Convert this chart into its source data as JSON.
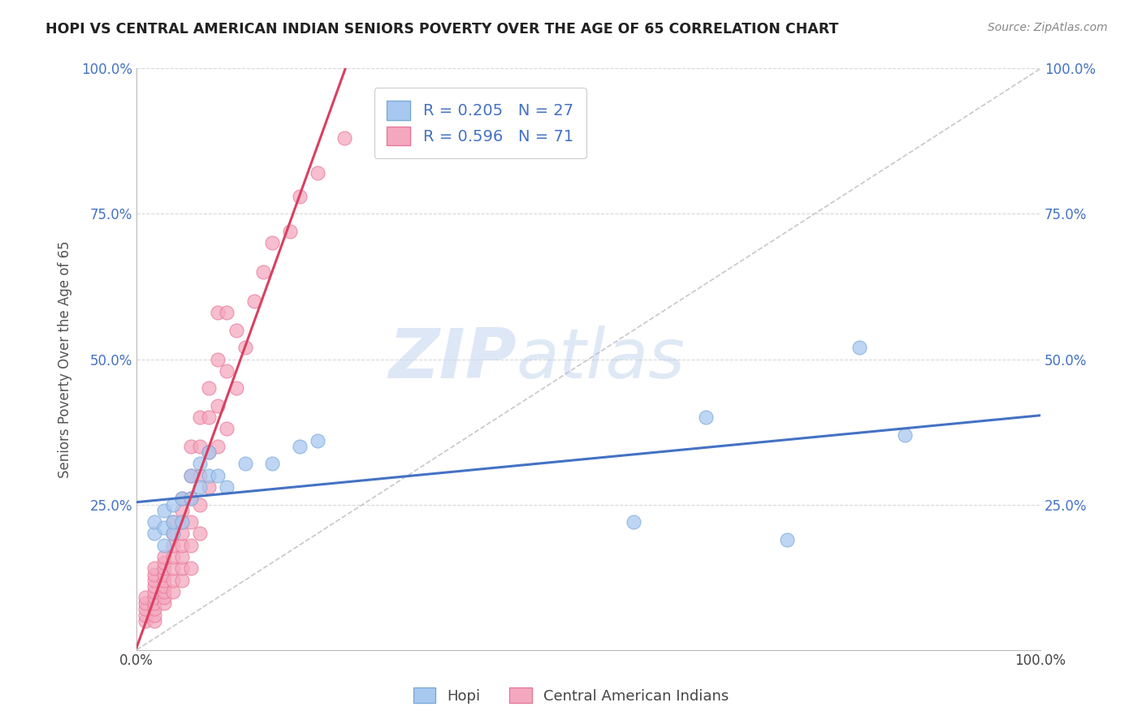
{
  "title": "HOPI VS CENTRAL AMERICAN INDIAN SENIORS POVERTY OVER THE AGE OF 65 CORRELATION CHART",
  "source": "Source: ZipAtlas.com",
  "ylabel": "Seniors Poverty Over the Age of 65",
  "xlim": [
    0.0,
    1.0
  ],
  "ylim": [
    0.0,
    1.0
  ],
  "xticks": [
    0.0,
    0.25,
    0.5,
    0.75,
    1.0
  ],
  "yticks": [
    0.0,
    0.25,
    0.5,
    0.75,
    1.0
  ],
  "xticklabels": [
    "0.0%",
    "",
    "",
    "",
    "100.0%"
  ],
  "yticklabels": [
    "",
    "25.0%",
    "50.0%",
    "75.0%",
    "100.0%"
  ],
  "right_yticklabels": [
    "",
    "25.0%",
    "50.0%",
    "75.0%",
    "100.0%"
  ],
  "hopi_color": "#a8c8f0",
  "central_color": "#f4a8c0",
  "hopi_edge_color": "#7aaad8",
  "central_edge_color": "#e87898",
  "hopi_line_color": "#4472c4",
  "central_line_color": "#d94060",
  "diagonal_color": "#c8c8c8",
  "hopi_R": 0.205,
  "hopi_N": 27,
  "central_R": 0.596,
  "central_N": 71,
  "legend_label_hopi": "Hopi",
  "legend_label_central": "Central American Indians",
  "watermark_zip": "ZIP",
  "watermark_atlas": "atlas",
  "hopi_x": [
    0.02,
    0.02,
    0.03,
    0.03,
    0.03,
    0.04,
    0.04,
    0.04,
    0.05,
    0.05,
    0.06,
    0.06,
    0.07,
    0.07,
    0.08,
    0.08,
    0.09,
    0.1,
    0.12,
    0.15,
    0.18,
    0.2,
    0.55,
    0.63,
    0.72,
    0.8,
    0.85
  ],
  "hopi_y": [
    0.2,
    0.22,
    0.18,
    0.21,
    0.24,
    0.2,
    0.22,
    0.25,
    0.22,
    0.26,
    0.26,
    0.3,
    0.28,
    0.32,
    0.3,
    0.34,
    0.3,
    0.28,
    0.32,
    0.32,
    0.35,
    0.36,
    0.22,
    0.4,
    0.19,
    0.52,
    0.37
  ],
  "central_x": [
    0.01,
    0.01,
    0.01,
    0.01,
    0.01,
    0.02,
    0.02,
    0.02,
    0.02,
    0.02,
    0.02,
    0.02,
    0.02,
    0.02,
    0.02,
    0.03,
    0.03,
    0.03,
    0.03,
    0.03,
    0.03,
    0.03,
    0.03,
    0.03,
    0.04,
    0.04,
    0.04,
    0.04,
    0.04,
    0.04,
    0.04,
    0.05,
    0.05,
    0.05,
    0.05,
    0.05,
    0.05,
    0.05,
    0.05,
    0.06,
    0.06,
    0.06,
    0.06,
    0.06,
    0.06,
    0.07,
    0.07,
    0.07,
    0.07,
    0.07,
    0.08,
    0.08,
    0.08,
    0.08,
    0.09,
    0.09,
    0.09,
    0.09,
    0.1,
    0.1,
    0.1,
    0.11,
    0.11,
    0.12,
    0.13,
    0.14,
    0.15,
    0.17,
    0.18,
    0.2,
    0.23
  ],
  "central_y": [
    0.05,
    0.06,
    0.07,
    0.08,
    0.09,
    0.05,
    0.06,
    0.07,
    0.08,
    0.09,
    0.1,
    0.11,
    0.12,
    0.13,
    0.14,
    0.08,
    0.09,
    0.1,
    0.11,
    0.12,
    0.13,
    0.14,
    0.15,
    0.16,
    0.1,
    0.12,
    0.14,
    0.16,
    0.18,
    0.2,
    0.22,
    0.12,
    0.14,
    0.16,
    0.18,
    0.2,
    0.22,
    0.24,
    0.26,
    0.14,
    0.18,
    0.22,
    0.26,
    0.3,
    0.35,
    0.2,
    0.25,
    0.3,
    0.35,
    0.4,
    0.28,
    0.34,
    0.4,
    0.45,
    0.35,
    0.42,
    0.5,
    0.58,
    0.38,
    0.48,
    0.58,
    0.45,
    0.55,
    0.52,
    0.6,
    0.65,
    0.7,
    0.72,
    0.78,
    0.82,
    0.88
  ]
}
